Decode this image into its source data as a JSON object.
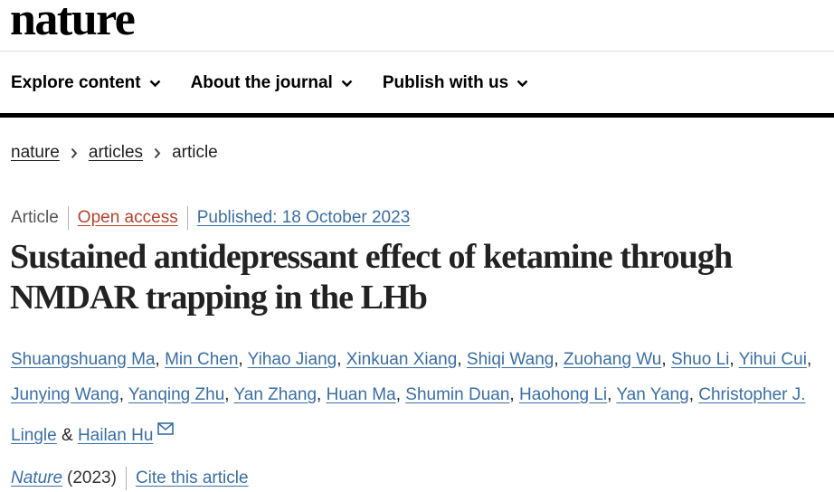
{
  "header": {
    "logo": "nature"
  },
  "nav": {
    "items": [
      {
        "label": "Explore content",
        "icon": "chevron-down-icon"
      },
      {
        "label": "About the journal",
        "icon": "chevron-down-icon"
      },
      {
        "label": "Publish with us",
        "icon": "chevron-down-icon"
      }
    ]
  },
  "breadcrumb": {
    "items": [
      "nature",
      "articles"
    ],
    "current": "article",
    "separator_icon": "chevron-right-icon"
  },
  "article": {
    "type": "Article",
    "access": "Open access",
    "published": "Published: 18 October 2023",
    "title": "Sustained antidepressant effect of ketamine through NMDAR trapping in the LHb",
    "authors": [
      "Shuangshuang Ma",
      "Min Chen",
      "Yihao Jiang",
      "Xinkuan Xiang",
      "Shiqi Wang",
      "Zuohang Wu",
      "Shuo Li",
      "Yihui Cui",
      "Junying Wang",
      "Yanqing Zhu",
      "Yan Zhang",
      "Huan Ma",
      "Shumin Duan",
      "Haohong Li",
      "Yan Yang",
      "Christopher J. Lingle",
      "Hailan Hu"
    ],
    "separator": ", ",
    "final_separator": " & ",
    "corresponding_icon": "mail-icon",
    "journal": "Nature",
    "year": "(2023)",
    "cite_label": "Cite this article"
  },
  "colors": {
    "link": "#3a6ea5",
    "open_access": "#b4412b",
    "text": "#222222"
  }
}
